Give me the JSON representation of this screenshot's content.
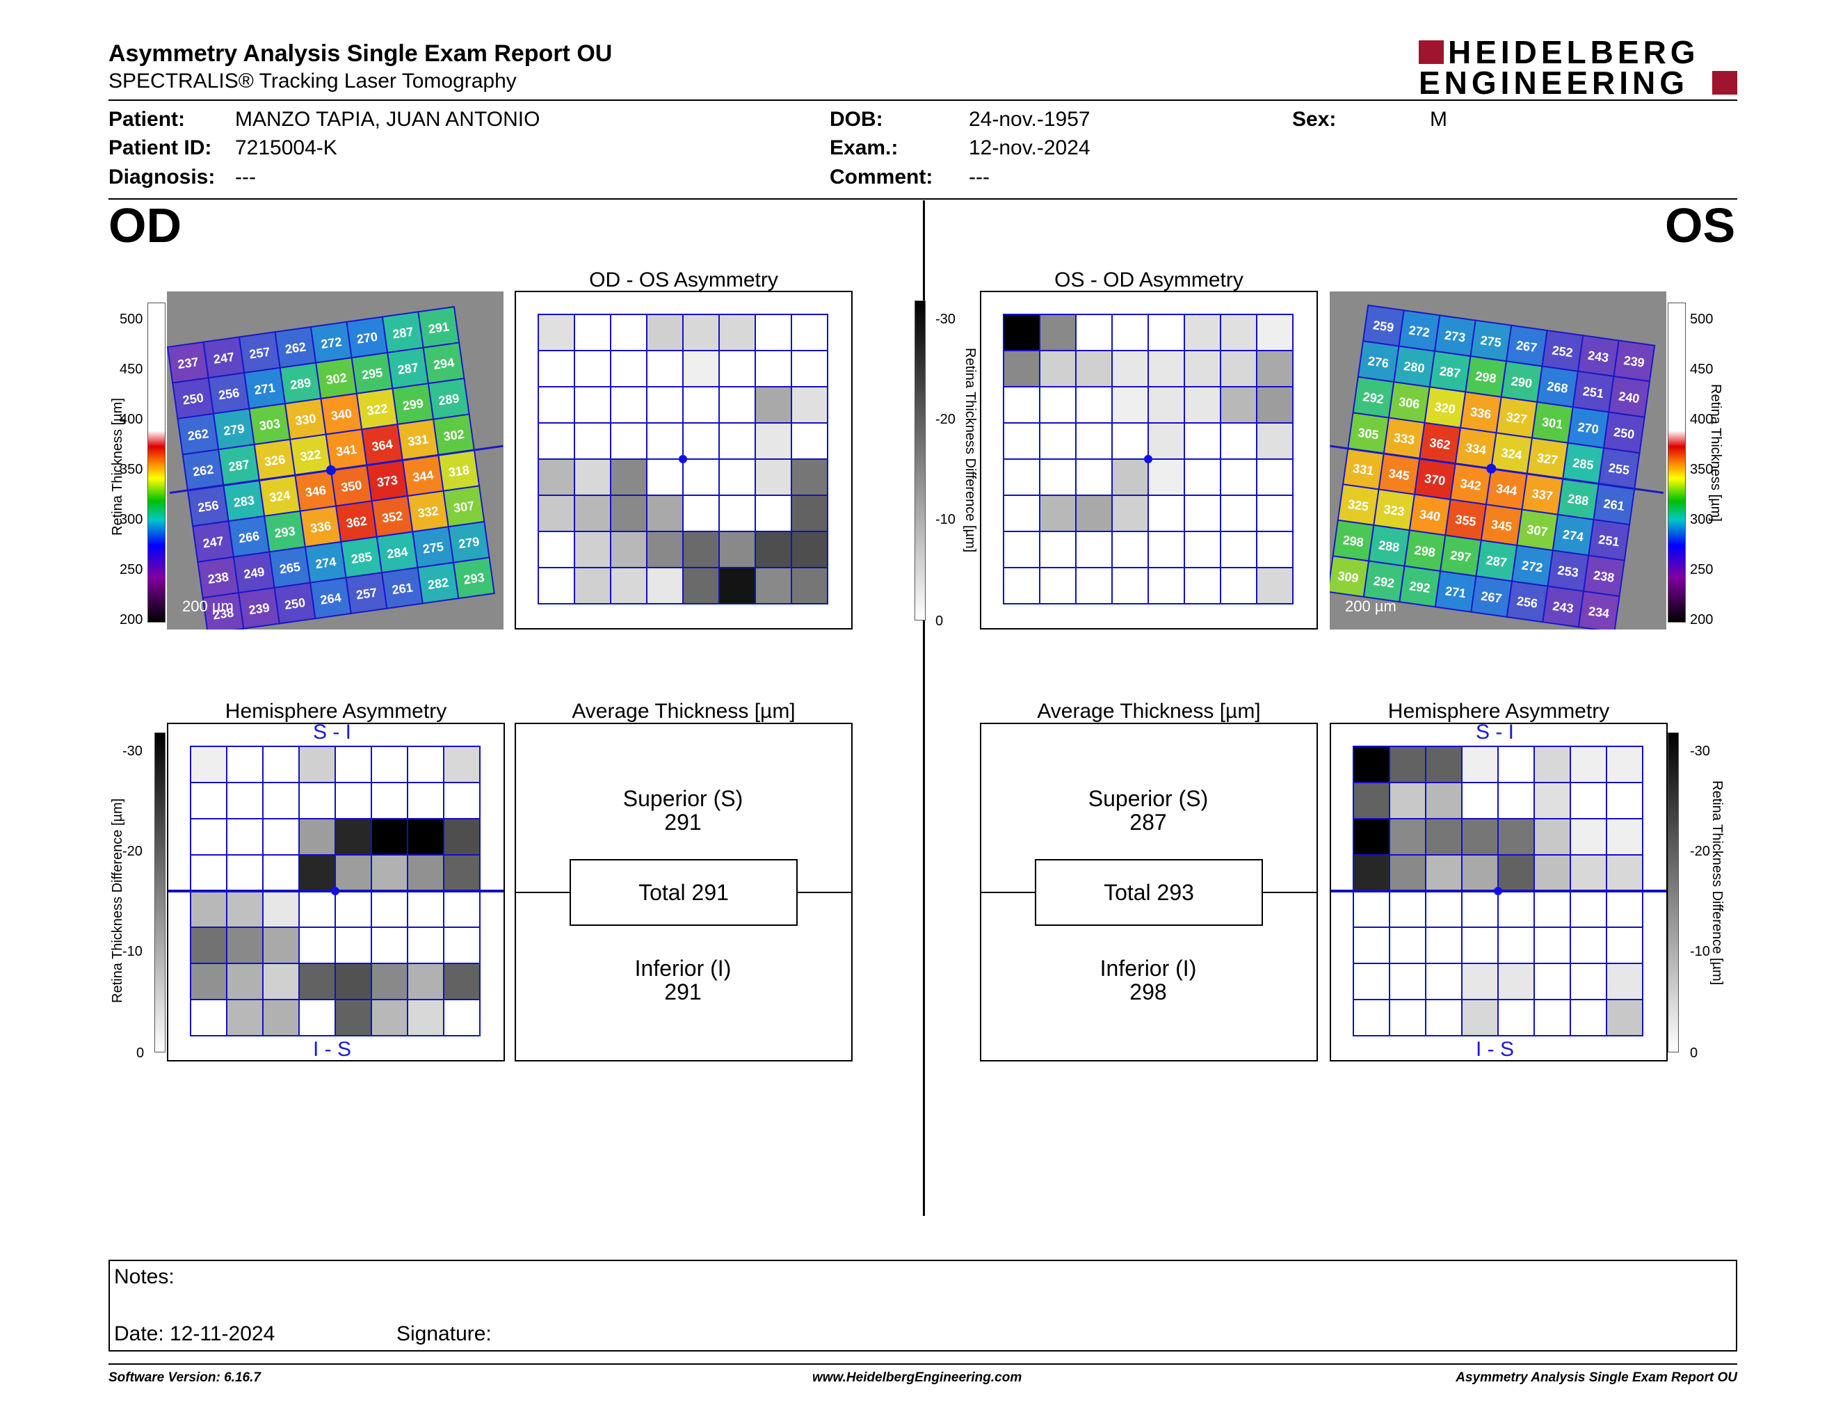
{
  "header": {
    "title": "Asymmetry Analysis Single Exam Report OU",
    "subtitle": "SPECTRALIS® Tracking Laser Tomography",
    "logo_line1": "HEIDELBERG",
    "logo_line2": "ENGINEERING",
    "logo_color": "#a0152e"
  },
  "patient": {
    "patient_label": "Patient:",
    "patient_value": "MANZO TAPIA, JUAN ANTONIO",
    "id_label": "Patient ID:",
    "id_value": "7215004-K",
    "diag_label": "Diagnosis:",
    "diag_value": "---",
    "dob_label": "DOB:",
    "dob_value": "24-nov.-1957",
    "exam_label": "Exam.:",
    "exam_value": "12-nov.-2024",
    "comment_label": "Comment:",
    "comment_value": "---",
    "sex_label": "Sex:",
    "sex_value": "M"
  },
  "od": {
    "label": "OD",
    "asym_title": "OD - OS Asymmetry",
    "hemi_title": "Hemisphere Asymmetry",
    "avg_title": "Average Thickness [µm]",
    "superior_label": "Superior (S)",
    "superior_value": "291",
    "total": "Total 291",
    "inferior_label": "Inferior (I)",
    "inferior_value": "291",
    "scale_text": "200 µm",
    "thickness": [
      [
        237,
        247,
        257,
        262,
        272,
        270,
        287,
        291
      ],
      [
        250,
        256,
        271,
        289,
        302,
        295,
        287,
        294
      ],
      [
        262,
        279,
        303,
        330,
        340,
        322,
        299,
        289
      ],
      [
        262,
        287,
        326,
        322,
        341,
        364,
        331,
        302
      ],
      [
        256,
        283,
        324,
        346,
        350,
        373,
        344,
        318
      ],
      [
        247,
        266,
        293,
        336,
        362,
        352,
        332,
        307
      ],
      [
        238,
        249,
        265,
        274,
        285,
        284,
        275,
        279
      ],
      [
        238,
        239,
        250,
        264,
        257,
        261,
        282,
        293
      ]
    ],
    "asym_grid": [
      [
        8,
        0,
        0,
        12,
        10,
        10,
        0,
        0
      ],
      [
        0,
        0,
        0,
        0,
        4,
        0,
        0,
        0
      ],
      [
        0,
        0,
        0,
        0,
        0,
        0,
        22,
        8
      ],
      [
        0,
        0,
        0,
        0,
        0,
        0,
        6,
        0
      ],
      [
        18,
        10,
        30,
        0,
        0,
        0,
        8,
        35
      ],
      [
        14,
        18,
        30,
        22,
        0,
        0,
        0,
        40
      ],
      [
        0,
        12,
        18,
        30,
        38,
        30,
        45,
        45
      ],
      [
        0,
        12,
        10,
        6,
        38,
        60,
        30,
        35
      ]
    ],
    "hemi_grid": [
      [
        4,
        0,
        0,
        12,
        0,
        0,
        0,
        10
      ],
      [
        0,
        0,
        0,
        0,
        0,
        0,
        0,
        0
      ],
      [
        0,
        0,
        0,
        25,
        55,
        65,
        65,
        45
      ],
      [
        0,
        0,
        0,
        55,
        25,
        20,
        28,
        40
      ],
      [
        18,
        16,
        6,
        0,
        0,
        0,
        0,
        0
      ],
      [
        36,
        30,
        22,
        0,
        0,
        0,
        0,
        0
      ],
      [
        28,
        20,
        12,
        40,
        44,
        30,
        20,
        40
      ],
      [
        0,
        18,
        20,
        0,
        40,
        18,
        10,
        0
      ]
    ]
  },
  "os": {
    "label": "OS",
    "asym_title": "OS - OD Asymmetry",
    "hemi_title": "Hemisphere Asymmetry",
    "avg_title": "Average Thickness [µm]",
    "superior_label": "Superior (S)",
    "superior_value": "287",
    "total": "Total 293",
    "inferior_label": "Inferior (I)",
    "inferior_value": "298",
    "scale_text": "200 µm",
    "thickness": [
      [
        259,
        272,
        273,
        275,
        267,
        252,
        243,
        239
      ],
      [
        276,
        280,
        287,
        298,
        290,
        268,
        251,
        240
      ],
      [
        292,
        306,
        320,
        336,
        327,
        301,
        270,
        250
      ],
      [
        305,
        333,
        362,
        334,
        324,
        327,
        285,
        255
      ],
      [
        331,
        345,
        370,
        342,
        344,
        337,
        288,
        261
      ],
      [
        325,
        323,
        340,
        355,
        345,
        307,
        274,
        251
      ],
      [
        298,
        288,
        298,
        297,
        287,
        272,
        253,
        238
      ],
      [
        309,
        292,
        292,
        271,
        267,
        256,
        243,
        234
      ]
    ],
    "asym_grid": [
      [
        65,
        30,
        0,
        0,
        0,
        8,
        8,
        4
      ],
      [
        30,
        12,
        12,
        6,
        6,
        8,
        10,
        22
      ],
      [
        0,
        0,
        0,
        4,
        6,
        6,
        18,
        25
      ],
      [
        0,
        0,
        0,
        0,
        6,
        0,
        0,
        8
      ],
      [
        0,
        0,
        0,
        14,
        4,
        0,
        0,
        0
      ],
      [
        0,
        18,
        22,
        12,
        0,
        0,
        0,
        0
      ],
      [
        0,
        0,
        0,
        0,
        0,
        0,
        0,
        0
      ],
      [
        0,
        0,
        0,
        0,
        0,
        0,
        0,
        10
      ]
    ],
    "hemi_grid": [
      [
        65,
        40,
        40,
        4,
        0,
        10,
        4,
        4
      ],
      [
        40,
        14,
        18,
        0,
        0,
        8,
        0,
        0
      ],
      [
        65,
        30,
        35,
        35,
        35,
        14,
        4,
        4
      ],
      [
        55,
        30,
        18,
        22,
        40,
        16,
        10,
        10
      ],
      [
        0,
        0,
        0,
        0,
        0,
        0,
        0,
        0
      ],
      [
        0,
        0,
        0,
        0,
        0,
        0,
        0,
        0
      ],
      [
        0,
        0,
        0,
        6,
        6,
        0,
        0,
        6
      ],
      [
        0,
        0,
        0,
        10,
        0,
        0,
        0,
        14
      ]
    ]
  },
  "scales": {
    "thickness_label": "Retina  Thickness [µm]",
    "thickness_ticks": [
      "500",
      "450",
      "400",
      "350",
      "300",
      "250",
      "200"
    ],
    "diff_label": "Retina Thickness Difference [µm]",
    "diff_ticks": [
      "-30",
      "-20",
      "-10",
      "0"
    ]
  },
  "hemi_top": "S - I",
  "hemi_bottom": "I - S",
  "notes": {
    "notes_label": "Notes:",
    "date_label": "Date: 12-11-2024",
    "signature_label": "Signature:"
  },
  "footer": {
    "software": "Software Version: 6.16.7",
    "website": "www.HeidelbergEngineering.com",
    "report_name": "Asymmetry Analysis Single Exam Report OU"
  }
}
